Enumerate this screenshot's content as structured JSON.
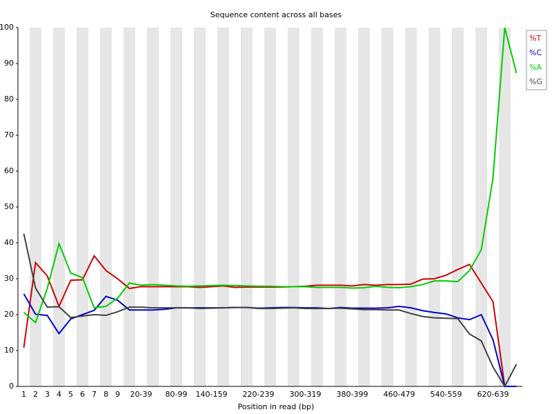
{
  "chart_data": {
    "type": "line",
    "title": "Sequence content across all bases",
    "xlabel": "Position in read (bp)",
    "categories": [
      "1",
      "2",
      "3",
      "4",
      "5",
      "6",
      "7",
      "8",
      "9",
      null,
      "20-39",
      null,
      null,
      "80-99",
      null,
      null,
      "140-159",
      null,
      null,
      null,
      "220-239",
      null,
      null,
      null,
      "300-319",
      null,
      null,
      null,
      "380-399",
      null,
      null,
      null,
      "460-479",
      null,
      null,
      null,
      "540-559",
      null,
      null,
      null,
      "620-639",
      null,
      null
    ],
    "series": [
      {
        "name": "%T",
        "color": "#cc0000",
        "values": [
          10.8,
          34.5,
          30.8,
          22.3,
          29.6,
          29.7,
          36.4,
          32.3,
          30.0,
          27.3,
          27.8,
          27.8,
          27.8,
          27.8,
          27.8,
          27.6,
          27.8,
          28.0,
          27.6,
          27.7,
          27.7,
          27.7,
          27.7,
          27.8,
          27.9,
          28.2,
          28.2,
          28.2,
          28.0,
          28.4,
          28.2,
          28.4,
          28.4,
          28.5,
          29.9,
          30.0,
          31.0,
          32.6,
          34.0,
          28.8,
          23.6,
          0,
          0
        ]
      },
      {
        "name": "%C",
        "color": "#0000cc",
        "values": [
          25.8,
          20.1,
          19.8,
          14.7,
          18.8,
          20.0,
          21.2,
          25.1,
          24.0,
          21.3,
          21.3,
          21.3,
          21.5,
          21.9,
          21.9,
          21.9,
          21.9,
          21.9,
          22.0,
          22.0,
          21.8,
          21.9,
          22.0,
          22.0,
          21.9,
          21.9,
          21.7,
          22.0,
          21.8,
          21.8,
          21.8,
          21.9,
          22.3,
          21.9,
          21.1,
          20.6,
          20.2,
          19.1,
          18.6,
          20.0,
          13.0,
          0,
          0
        ]
      },
      {
        "name": "%A",
        "color": "#00cc00",
        "values": [
          20.6,
          17.8,
          27.3,
          39.8,
          31.6,
          30.3,
          21.9,
          22.3,
          24.6,
          28.8,
          28.2,
          28.4,
          28.2,
          28.0,
          27.9,
          28.0,
          28.1,
          28.2,
          28.1,
          28.0,
          27.9,
          27.9,
          27.8,
          27.8,
          27.8,
          27.6,
          27.6,
          27.6,
          27.4,
          27.5,
          27.9,
          27.6,
          27.5,
          27.8,
          28.4,
          29.4,
          29.4,
          29.2,
          32.3,
          38.1,
          58.1,
          100,
          87.3
        ]
      },
      {
        "name": "%G",
        "color": "#404040",
        "values": [
          42.6,
          27.4,
          22.1,
          22.2,
          19.2,
          19.6,
          20.0,
          19.8,
          20.8,
          22.1,
          22.1,
          21.9,
          21.9,
          21.9,
          21.9,
          21.7,
          21.8,
          21.9,
          22.0,
          22.0,
          21.7,
          21.7,
          21.8,
          21.9,
          21.7,
          21.7,
          21.7,
          21.8,
          21.6,
          21.4,
          21.4,
          21.3,
          21.3,
          20.3,
          19.5,
          19.1,
          19.0,
          18.9,
          14.6,
          12.7,
          5.4,
          0,
          6.2
        ]
      }
    ],
    "ylim": [
      0,
      100
    ],
    "yticks": [
      0,
      10,
      20,
      30,
      40,
      50,
      60,
      70,
      80,
      90,
      100
    ],
    "legend": "top-right"
  }
}
